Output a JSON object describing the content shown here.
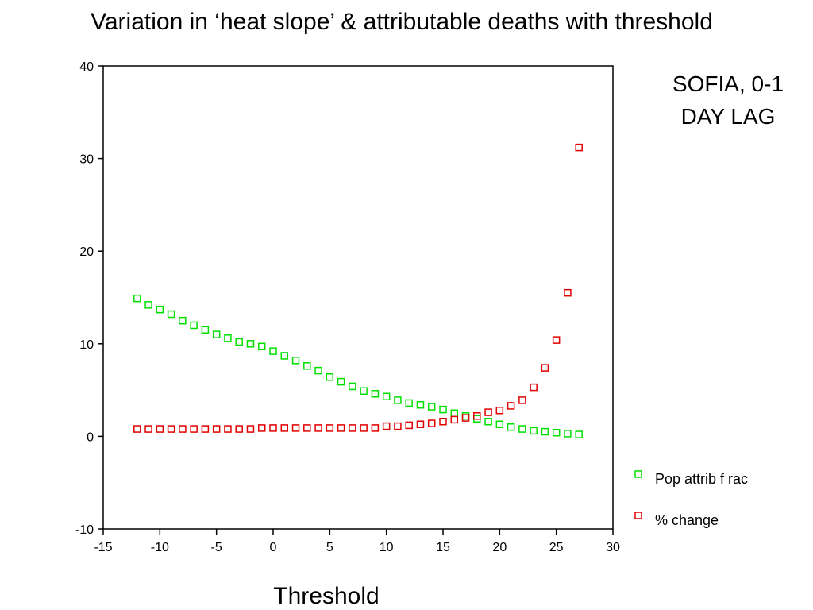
{
  "slide": {
    "title": "Variation in ‘heat slope’ & attributable deaths with threshold",
    "note_line1": "SOFIA, 0-1",
    "note_line2": "DAY LAG"
  },
  "colors": {
    "pop_attrib_frac": "#00e000",
    "pct_change": "#e00000",
    "axis": "#000000"
  },
  "chart_data": {
    "type": "scatter",
    "xlabel": "Threshold",
    "ylabel": "",
    "xlim": [
      -15,
      30
    ],
    "ylim": [
      -10,
      40
    ],
    "xticks": [
      -15,
      -10,
      -5,
      0,
      5,
      10,
      15,
      20,
      25,
      30
    ],
    "yticks": [
      -10,
      0,
      10,
      20,
      30,
      40
    ],
    "grid": false,
    "legend_position": "bottom-right",
    "marker": "hollow-square",
    "series": [
      {
        "name": "Pop attrib f rac",
        "color": "#00e000",
        "x": [
          -12,
          -11,
          -10,
          -9,
          -8,
          -7,
          -6,
          -5,
          -4,
          -3,
          -2,
          -1,
          0,
          1,
          2,
          3,
          4,
          5,
          6,
          7,
          8,
          9,
          10,
          11,
          12,
          13,
          14,
          15,
          16,
          17,
          18,
          19,
          20,
          21,
          22,
          23,
          24,
          25,
          26,
          27
        ],
        "y": [
          14.9,
          14.2,
          13.7,
          13.2,
          12.5,
          12.0,
          11.5,
          11.0,
          10.6,
          10.2,
          10.0,
          9.7,
          9.2,
          8.7,
          8.2,
          7.6,
          7.1,
          6.4,
          5.9,
          5.4,
          4.9,
          4.6,
          4.3,
          3.9,
          3.6,
          3.4,
          3.2,
          2.9,
          2.5,
          2.2,
          1.9,
          1.6,
          1.3,
          1.0,
          0.8,
          0.6,
          0.5,
          0.4,
          0.3,
          0.2
        ]
      },
      {
        "name": "% change",
        "color": "#e00000",
        "x": [
          -12,
          -11,
          -10,
          -9,
          -8,
          -7,
          -6,
          -5,
          -4,
          -3,
          -2,
          -1,
          0,
          1,
          2,
          3,
          4,
          5,
          6,
          7,
          8,
          9,
          10,
          11,
          12,
          13,
          14,
          15,
          16,
          17,
          18,
          19,
          20,
          21,
          22,
          23,
          24,
          25,
          26,
          27
        ],
        "y": [
          0.8,
          0.8,
          0.8,
          0.8,
          0.8,
          0.8,
          0.8,
          0.8,
          0.8,
          0.8,
          0.8,
          0.9,
          0.9,
          0.9,
          0.9,
          0.9,
          0.9,
          0.9,
          0.9,
          0.9,
          0.9,
          0.9,
          1.1,
          1.1,
          1.2,
          1.3,
          1.4,
          1.6,
          1.8,
          2.0,
          2.2,
          2.6,
          2.8,
          3.3,
          3.9,
          5.3,
          7.4,
          10.4,
          15.5,
          31.2
        ]
      }
    ]
  }
}
